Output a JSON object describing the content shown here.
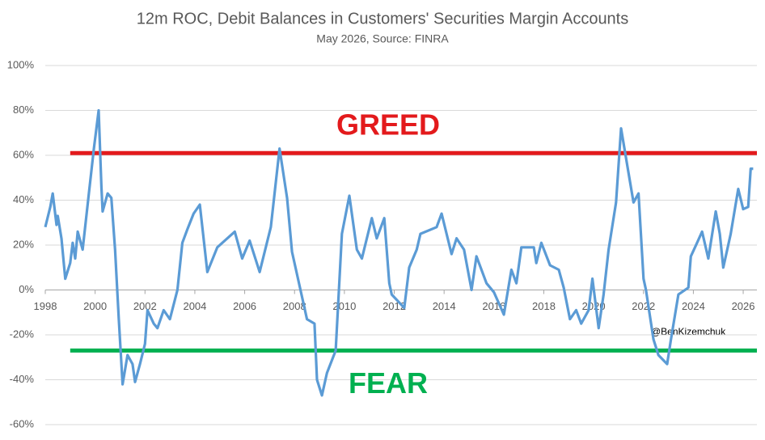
{
  "chart_data": {
    "type": "line",
    "title": "12m ROC, Debit Balances in Customers' Securities Margin Accounts",
    "subtitle": "May 2026, Source: FINRA",
    "xlim": [
      1998,
      2026.55
    ],
    "xticks": [
      1998,
      2000,
      2002,
      2004,
      2006,
      2008,
      2010,
      2012,
      2014,
      2016,
      2018,
      2020,
      2022,
      2024,
      2026
    ],
    "ylim": [
      -60,
      100
    ],
    "yticks": [
      {
        "value": -60,
        "label": "-60%"
      },
      {
        "value": -40,
        "label": "-40%"
      },
      {
        "value": -20,
        "label": "-20%"
      },
      {
        "value": 0,
        "label": "0%"
      },
      {
        "value": 20,
        "label": "20%"
      },
      {
        "value": 40,
        "label": "40%"
      },
      {
        "value": 60,
        "label": "60%"
      },
      {
        "value": 80,
        "label": "80%"
      },
      {
        "value": 100,
        "label": "100%"
      }
    ],
    "grid": true,
    "series": [
      {
        "color": "#5b9bd5",
        "x": [
          1998.0,
          1998.2,
          1998.3,
          1998.45,
          1998.5,
          1998.65,
          1998.8,
          1999.0,
          1999.1,
          1999.2,
          1999.3,
          1999.5,
          1999.75,
          1999.95,
          2000.14,
          2000.25,
          2000.3,
          2000.5,
          2000.65,
          2000.8,
          2000.95,
          2001.1,
          2001.3,
          2001.5,
          2001.6,
          2001.8,
          2002.0,
          2002.1,
          2002.35,
          2002.5,
          2002.75,
          2003.0,
          2003.3,
          2003.5,
          2003.7,
          2003.95,
          2004.2,
          2004.5,
          2004.9,
          2005.6,
          2005.9,
          2006.2,
          2006.6,
          2007.05,
          2007.4,
          2007.7,
          2007.9,
          2008.5,
          2008.8,
          2008.9,
          2009.1,
          2009.3,
          2009.65,
          2009.9,
          2010.2,
          2010.5,
          2010.7,
          2011.1,
          2011.3,
          2011.6,
          2011.8,
          2011.9,
          2012.4,
          2012.6,
          2012.9,
          2013.05,
          2013.7,
          2013.9,
          2014.3,
          2014.5,
          2014.8,
          2015.1,
          2015.3,
          2015.7,
          2016.0,
          2016.4,
          2016.7,
          2016.9,
          2017.1,
          2017.6,
          2017.7,
          2017.9,
          2018.25,
          2018.6,
          2018.8,
          2019.05,
          2019.3,
          2019.5,
          2019.8,
          2019.95,
          2020.2,
          2020.4,
          2020.6,
          2020.9,
          2021.1,
          2021.4,
          2021.6,
          2021.8,
          2022.0,
          2022.1,
          2022.4,
          2022.6,
          2022.95,
          2023.1,
          2023.4,
          2023.8,
          2023.9,
          2024.15,
          2024.35,
          2024.6,
          2024.9,
          2025.06,
          2025.2,
          2025.5,
          2025.8,
          2026.0,
          2026.2,
          2026.3,
          2026.4
        ],
        "values": [
          28,
          37,
          43,
          29,
          33,
          23,
          5,
          12,
          21,
          14,
          26,
          18,
          43,
          63,
          80,
          46,
          35,
          43,
          41,
          18,
          -13,
          -42,
          -29,
          -33,
          -41,
          -33,
          -24,
          -9,
          -15,
          -17,
          -9,
          -13,
          0,
          21,
          27,
          34,
          38,
          8,
          19,
          26,
          14,
          22,
          8,
          28,
          63,
          41,
          17,
          -13,
          -15,
          -40,
          -47,
          -37,
          -27,
          25,
          42,
          18,
          14,
          32,
          23,
          32,
          3,
          -2,
          -8,
          10,
          18,
          25,
          28,
          34,
          16,
          23,
          18,
          0,
          15,
          3,
          -1,
          -11,
          9,
          3,
          19,
          19,
          12,
          21,
          11,
          9,
          1,
          -13,
          -9,
          -15,
          -9,
          5,
          -17,
          -2,
          18,
          39,
          72,
          52,
          39,
          43,
          5,
          0,
          -22,
          -29,
          -33,
          -22,
          -2,
          1,
          15,
          21,
          26,
          14,
          35,
          25,
          10,
          25,
          45,
          36,
          37,
          54,
          54
        ]
      }
    ],
    "reference_lines": [
      {
        "label": "GREED",
        "value": 61,
        "color": "#e31a1c",
        "x": [
          1999,
          2026.55
        ]
      },
      {
        "label": "FEAR",
        "value": -27,
        "color": "#00b050",
        "x": [
          1999,
          2026.55
        ]
      }
    ],
    "annotation": "@BenKizemchuk"
  }
}
